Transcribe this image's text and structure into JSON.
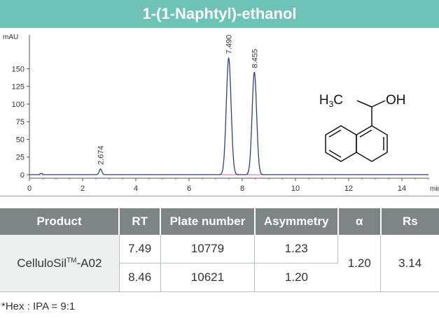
{
  "title": "1-(1-Naphtyl)-ethanol",
  "chart_data": {
    "type": "line",
    "ylabel": "mAU",
    "xlabel": "min",
    "xlim": [
      0,
      15
    ],
    "ylim": [
      -5,
      190
    ],
    "x_ticks": [
      0,
      2,
      4,
      6,
      8,
      10,
      12,
      14
    ],
    "y_ticks": [
      0,
      25,
      50,
      75,
      100,
      125,
      150
    ],
    "peaks": [
      {
        "rt": 2.674,
        "height": 8,
        "label": "2.674"
      },
      {
        "rt": 7.49,
        "height": 165,
        "label": "7.490"
      },
      {
        "rt": 8.455,
        "height": 145,
        "label": "8.455"
      }
    ],
    "line_color": "#2e3f8f",
    "baseline_color": "#e0609a"
  },
  "structure": {
    "formula_left": "H3C",
    "formula_right": "OH"
  },
  "table": {
    "headers": [
      "Product",
      "RT",
      "Plate number",
      "Asymmetry",
      "α",
      "Rs"
    ],
    "product": "CelluloSil",
    "product_sup": "TM",
    "product_suffix": "-A02",
    "rows": [
      {
        "rt": "7.49",
        "plates": "10779",
        "asym": "1.23"
      },
      {
        "rt": "8.46",
        "plates": "10621",
        "asym": "1.20"
      }
    ],
    "alpha": "1.20",
    "rs": "3.14"
  },
  "footnote": "*Hex : IPA = 9:1",
  "colors": {
    "title_bg": "#6cc3b6",
    "header_bg": "#7d8587",
    "cell_bg": "#eef0f0"
  }
}
